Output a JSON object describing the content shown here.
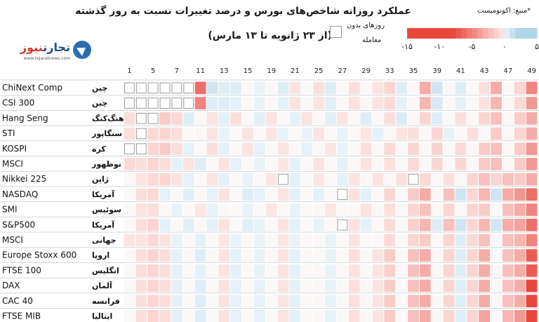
{
  "header": {
    "title": "عملکرد روزانه شاخص‌های بورس و درصد تغییرات نسبت به روز گذشته",
    "subtitle": "(از ۲۳ ژانویه تا ۱۳ مارس)",
    "source": "*منبع: اکونومیست"
  },
  "logo": {
    "name_part1": "تجارت",
    "name_part2": "نیوز",
    "site": "www.tejaratnews.com"
  },
  "legend": {
    "no_trade_line1": "روزهای بدون",
    "no_trade_line2": "معامله",
    "scale_ticks": [
      "-۱۵",
      "-۱۰",
      "-۵",
      "۰",
      "۵"
    ],
    "scale_values": [
      -15,
      -10,
      -5,
      0,
      5
    ]
  },
  "colors": {
    "neg_strong": "#e8473c",
    "neg_light": "#fbe3dc",
    "pos_strong": "#8fc3e0",
    "pos_light": "#e6f1f8",
    "no_trade": "#ffffff",
    "grid": "#cfd6dc"
  },
  "chart_data": {
    "type": "heatmap",
    "title": "عملکرد روزانه شاخص‌های بورس و درصد تغییرات نسبت به روز گذشته",
    "subtitle": "(از ۲۳ ژانویه تا ۱۳ مارس)",
    "color_scale": [
      -15,
      5
    ],
    "x_ticks": [
      {
        "label": "1",
        "day": 1
      },
      {
        "label": "5",
        "day": 3
      },
      {
        "label": "7",
        "day": 5
      },
      {
        "label": "11",
        "day": 7
      },
      {
        "label": "13",
        "day": 9
      },
      {
        "label": "15",
        "day": 11
      },
      {
        "label": "19",
        "day": 13
      },
      {
        "label": "21",
        "day": 15
      },
      {
        "label": "25",
        "day": 17
      },
      {
        "label": "27",
        "day": 19
      },
      {
        "label": "29",
        "day": 21
      },
      {
        "label": "33",
        "day": 23
      },
      {
        "label": "35",
        "day": 25
      },
      {
        "label": "39",
        "day": 27
      },
      {
        "label": "41",
        "day": 29
      },
      {
        "label": "43",
        "day": 31
      },
      {
        "label": "47",
        "day": 33
      },
      {
        "label": "49",
        "day": 35
      }
    ],
    "num_days": 35,
    "rows": [
      {
        "index": "ChiNext Comp",
        "country": "چین",
        "no_trade": [
          1,
          2,
          3,
          4,
          5,
          6
        ]
      },
      {
        "index": "CSI 300",
        "country": "چین",
        "no_trade": [
          1,
          2,
          3,
          4,
          5,
          6
        ]
      },
      {
        "index": "Hang Seng",
        "country": "هنگ‌کنگ",
        "no_trade": [
          2,
          3
        ]
      },
      {
        "index": "STI",
        "country": "سنگاپور",
        "no_trade": [
          2
        ]
      },
      {
        "index": "KOSPI",
        "country": "کره",
        "no_trade": [
          1,
          2
        ]
      },
      {
        "index": "MSCI",
        "country": "نوظهور",
        "no_trade": []
      },
      {
        "index": "Nikkei 225",
        "country": "ژاپن",
        "no_trade": [
          14,
          25
        ]
      },
      {
        "index": "NASDAQ",
        "country": "آمریکا",
        "no_trade": [
          19
        ]
      },
      {
        "index": "SMI",
        "country": "سوئیس",
        "no_trade": []
      },
      {
        "index": "S&P500",
        "country": "آمریکا",
        "no_trade": [
          19
        ]
      },
      {
        "index": "MSCI",
        "country": "جهانی",
        "no_trade": []
      },
      {
        "index": "Europe Stoxx 600",
        "country": "اروپا",
        "no_trade": []
      },
      {
        "index": "FTSE 100",
        "country": "انگلیس",
        "no_trade": []
      },
      {
        "index": "DAX",
        "country": "آلمان",
        "no_trade": []
      },
      {
        "index": "CAC 40",
        "country": "فرانسه",
        "no_trade": []
      },
      {
        "index": "FTSE MIB",
        "country": "ایتالیا",
        "no_trade": []
      }
    ],
    "values": [
      [
        0,
        0,
        0,
        0,
        0,
        0,
        -6,
        1,
        0.5,
        0.5,
        0,
        0.2,
        0,
        0.5,
        -0.3,
        0,
        -0.5,
        0.5,
        0,
        -0.5,
        0,
        -0.3,
        -1,
        0.5,
        0,
        -3,
        1,
        0,
        0.5,
        0,
        -0.5,
        -3,
        0,
        -1,
        -5
      ],
      [
        0,
        0,
        0,
        0,
        0,
        0,
        -5,
        0.5,
        0.5,
        0.3,
        0,
        0.2,
        0,
        0.3,
        -0.3,
        0,
        -0.3,
        0.4,
        0,
        -0.4,
        0,
        -0.3,
        -0.8,
        0.3,
        0,
        -2.5,
        0.8,
        0,
        0.3,
        0,
        -0.4,
        -2.5,
        0,
        -0.8,
        -4
      ],
      [
        -0.5,
        0,
        0,
        -1.5,
        -0.8,
        0.5,
        0,
        -0.3,
        0.3,
        -0.5,
        0,
        0.4,
        -0.3,
        0,
        0.3,
        -0.3,
        0,
        0.4,
        -0.3,
        0,
        0.5,
        0,
        -0.5,
        0.6,
        0,
        -1,
        0.5,
        0,
        -0.5,
        0,
        -1,
        -2,
        0,
        -1.5,
        -3
      ],
      [
        -0.5,
        0,
        -0.8,
        -1,
        -0.5,
        0,
        0,
        -0.3,
        0.2,
        0,
        -0.3,
        0,
        -0.2,
        0.2,
        0,
        0.2,
        -0.3,
        0,
        0.2,
        0,
        -0.2,
        0.3,
        0,
        -0.3,
        -0.5,
        0,
        -1,
        0.2,
        0,
        -0.5,
        0,
        -1.5,
        0,
        -1,
        -3
      ],
      [
        0,
        0,
        -1,
        -1.5,
        -0.5,
        0.3,
        0,
        -0.5,
        0.3,
        0,
        -0.3,
        0.3,
        0,
        -0.3,
        0,
        0.3,
        0,
        -0.2,
        0.2,
        0,
        -0.5,
        0,
        -0.8,
        0,
        -1,
        0,
        -1.2,
        0,
        -0.8,
        0,
        -1.5,
        -2,
        0,
        -1.5,
        -4
      ],
      [
        -0.8,
        -0.5,
        -1,
        -0.5,
        0.3,
        -0.3,
        0.5,
        0,
        -0.3,
        0.3,
        0,
        0.2,
        0,
        -0.2,
        0.3,
        0,
        -0.3,
        0,
        0.3,
        0,
        -0.3,
        0,
        -0.5,
        0,
        -0.8,
        0,
        -1,
        0,
        -1,
        0,
        -1.5,
        -2,
        0,
        -1.5,
        -4
      ],
      [
        0,
        -0.3,
        -0.8,
        -1,
        -0.3,
        0.3,
        0,
        -0.3,
        0.3,
        0,
        0.2,
        0,
        -0.2,
        0,
        0.3,
        0,
        -0.2,
        0,
        0.3,
        -0.3,
        0,
        -0.3,
        0,
        -0.5,
        0,
        -0.8,
        0,
        -0.5,
        0,
        -1,
        -2,
        -1,
        -2,
        -1.5,
        -3
      ],
      [
        0,
        -0.5,
        -0.8,
        0.3,
        0,
        0.4,
        0,
        0.3,
        -0.3,
        0,
        0.5,
        0.3,
        0,
        -0.3,
        0.3,
        0,
        0.3,
        0,
        0,
        -0.3,
        0.3,
        0,
        -1,
        0,
        -1.5,
        -3,
        0,
        -2,
        1,
        -1,
        -2.5,
        1,
        -3,
        -4,
        -6
      ],
      [
        0,
        -0.3,
        -0.5,
        0,
        0.2,
        0,
        -0.2,
        0.2,
        0,
        0,
        0.2,
        0,
        -0.2,
        0,
        0.2,
        0,
        0,
        -0.2,
        0,
        0,
        -0.3,
        0,
        -0.5,
        0,
        -1,
        -2,
        0,
        -1,
        0,
        -1,
        -1.5,
        0,
        -2,
        -3,
        -5
      ],
      [
        0,
        -0.5,
        -1,
        0.3,
        0,
        0.4,
        0,
        0.3,
        -0.3,
        0,
        0.4,
        0.2,
        0,
        -0.3,
        0.3,
        0,
        0.2,
        0,
        0,
        -0.3,
        0.3,
        0,
        -0.8,
        0,
        -1.3,
        -2.5,
        0.5,
        -2,
        1,
        -1,
        -2.5,
        1,
        -3,
        -3.5,
        -6
      ],
      [
        -0.3,
        -0.3,
        -0.8,
        -0.3,
        0.2,
        0,
        0.3,
        0,
        -0.2,
        0.2,
        0,
        0.2,
        0,
        -0.2,
        0.2,
        0,
        0,
        0.2,
        0,
        -0.3,
        0,
        0,
        -0.8,
        0,
        -1,
        -1.5,
        0,
        -1,
        0.5,
        -0.8,
        -2,
        0,
        -2,
        -2.5,
        -5
      ],
      [
        0,
        -0.5,
        -1,
        -0.5,
        0.3,
        0,
        0.5,
        0,
        -0.3,
        0.3,
        0,
        0.2,
        0,
        -0.3,
        0.3,
        0,
        0,
        0.2,
        0,
        -0.5,
        0,
        -0.3,
        -1.5,
        0,
        -2,
        -3,
        0,
        -1,
        0.5,
        -1,
        -3,
        0,
        -2,
        -3,
        -7
      ],
      [
        0,
        -0.5,
        -1,
        -0.5,
        0.3,
        0,
        0.3,
        0,
        -0.3,
        0.3,
        0,
        0.2,
        0,
        -0.3,
        0.3,
        0,
        0,
        0.2,
        0,
        -0.4,
        0,
        -0.3,
        -1.3,
        0,
        -2,
        -3,
        0,
        -1,
        0.5,
        -1,
        -3,
        0,
        -2,
        -3,
        -7
      ],
      [
        0,
        -0.5,
        -1,
        -0.5,
        0.3,
        0,
        0.5,
        0,
        -0.3,
        0.3,
        0,
        0.3,
        0,
        -0.3,
        0.3,
        0,
        0,
        0.2,
        0,
        -0.5,
        0,
        -0.3,
        -1.5,
        0,
        -2,
        -3,
        0,
        -1,
        0.5,
        -1,
        -3,
        0,
        -2,
        -3,
        -8
      ],
      [
        0,
        -0.5,
        -1,
        -0.5,
        0.3,
        0,
        0.5,
        0,
        -0.3,
        0.3,
        0,
        0.3,
        0,
        -0.3,
        0.3,
        0,
        0,
        0.2,
        0,
        -0.5,
        0,
        -0.3,
        -1.5,
        0,
        -2,
        -3,
        0,
        -1,
        0.5,
        -1,
        -3,
        0,
        -2,
        -3,
        -8
      ],
      [
        0,
        -0.5,
        -1,
        -0.5,
        0.3,
        0,
        0.5,
        0,
        -0.3,
        0.3,
        0,
        0.3,
        0,
        -0.3,
        0.3,
        0,
        0,
        0.2,
        0,
        -0.5,
        0,
        -0.3,
        -1.5,
        0,
        -2,
        -3,
        0,
        -1,
        0.5,
        -1,
        -3.5,
        0,
        -2.5,
        -4,
        -15
      ]
    ]
  }
}
